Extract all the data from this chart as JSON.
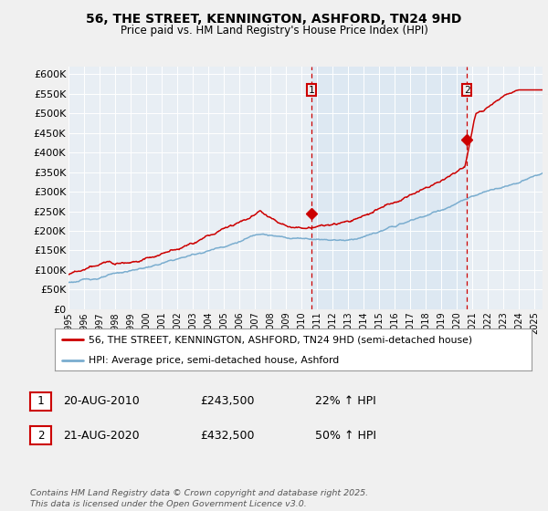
{
  "title": "56, THE STREET, KENNINGTON, ASHFORD, TN24 9HD",
  "subtitle": "Price paid vs. HM Land Registry's House Price Index (HPI)",
  "ylabel_ticks": [
    "£0",
    "£50K",
    "£100K",
    "£150K",
    "£200K",
    "£250K",
    "£300K",
    "£350K",
    "£400K",
    "£450K",
    "£500K",
    "£550K",
    "£600K"
  ],
  "ytick_values": [
    0,
    50000,
    100000,
    150000,
    200000,
    250000,
    300000,
    350000,
    400000,
    450000,
    500000,
    550000,
    600000
  ],
  "ylim": [
    0,
    620000
  ],
  "xlim_start": 1995.0,
  "xlim_end": 2025.5,
  "xticks": [
    1995,
    1996,
    1997,
    1998,
    1999,
    2000,
    2001,
    2002,
    2003,
    2004,
    2005,
    2006,
    2007,
    2008,
    2009,
    2010,
    2011,
    2012,
    2013,
    2014,
    2015,
    2016,
    2017,
    2018,
    2019,
    2020,
    2021,
    2022,
    2023,
    2024,
    2025
  ],
  "sale1_x": 2010.63,
  "sale1_y": 243500,
  "sale1_label": "1",
  "sale2_x": 2020.63,
  "sale2_y": 432500,
  "sale2_label": "2",
  "red_line_color": "#cc0000",
  "blue_line_color": "#7aadcf",
  "highlight_color": "#dce8f2",
  "background_color": "#e8eef4",
  "plot_bg_color": "#e8eef4",
  "fig_bg_color": "#f0f0f0",
  "legend_label_red": "56, THE STREET, KENNINGTON, ASHFORD, TN24 9HD (semi-detached house)",
  "legend_label_blue": "HPI: Average price, semi-detached house, Ashford",
  "note1_label": "1",
  "note1_date": "20-AUG-2010",
  "note1_price": "£243,500",
  "note1_hpi": "22% ↑ HPI",
  "note2_label": "2",
  "note2_date": "21-AUG-2020",
  "note2_price": "£432,500",
  "note2_hpi": "50% ↑ HPI",
  "footer": "Contains HM Land Registry data © Crown copyright and database right 2025.\nThis data is licensed under the Open Government Licence v3.0."
}
